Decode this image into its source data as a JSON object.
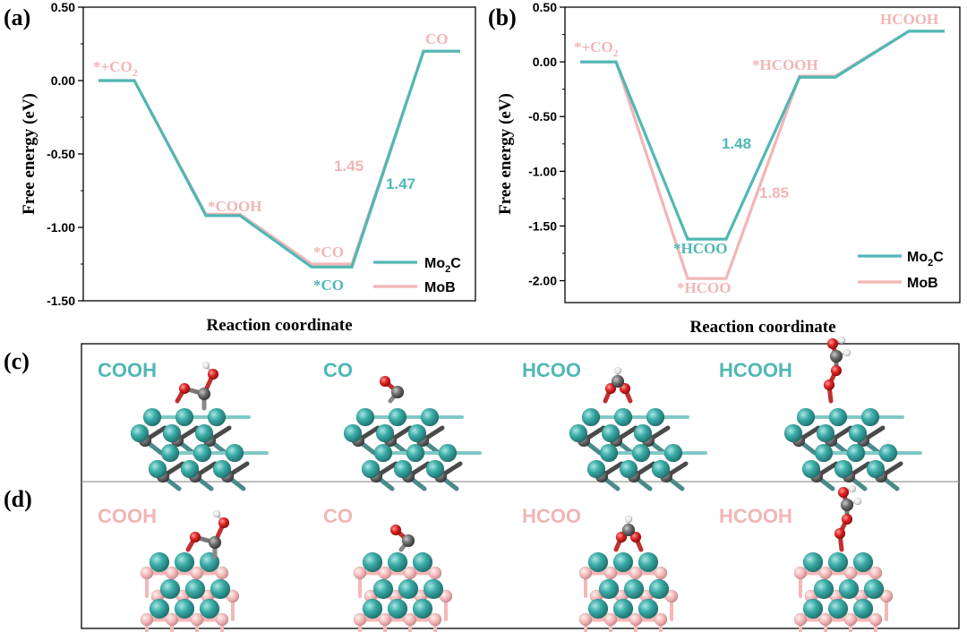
{
  "colors": {
    "mo2c": "#4fb8b4",
    "mob": "#f2b5b5",
    "atom_mo": "#3aaca8",
    "atom_c": "#6b6b6b",
    "atom_o": "#e02020",
    "atom_h": "#eeeeee",
    "atom_b": "#f4b8b8"
  },
  "panels": {
    "a": "(a)",
    "b": "(b)",
    "c": "(c)",
    "d": "(d)"
  },
  "chart_data": [
    {
      "type": "line",
      "panel": "(a)",
      "title": "",
      "xlabel": "Reaction coordinate",
      "ylabel": "Free energy (eV)",
      "ylim": [
        -1.5,
        0.5
      ],
      "yticks": [
        "0.50",
        "0.00",
        "-0.50",
        "-1.00",
        "-1.50"
      ],
      "ytick_values": [
        0.5,
        0.0,
        -0.5,
        -1.0,
        -1.5
      ],
      "states": [
        "*+CO2",
        "*COOH",
        "*CO",
        "CO"
      ],
      "series": [
        {
          "name": "Mo2C",
          "values": [
            0.0,
            -0.92,
            -1.27,
            0.2
          ]
        },
        {
          "name": "MoB",
          "values": [
            0.0,
            -0.91,
            -1.25,
            0.2
          ]
        }
      ],
      "labels": {
        "s0": "*+CO",
        "s0_sub": "2",
        "s1": "*COOH",
        "s2_mob": "*CO",
        "s2_mo2c": "*CO",
        "s3": "CO",
        "barrier_mob": "1.45",
        "barrier_mo2c": "1.47"
      },
      "legend": {
        "mo2c_base": "Mo",
        "mo2c_sub": "2",
        "mo2c_end": "C",
        "mob": "MoB",
        "position": "bottom-right"
      }
    },
    {
      "type": "line",
      "panel": "(b)",
      "title": "",
      "xlabel": "Reaction coordinate",
      "ylabel": "Free energy (eV)",
      "ylim": [
        -2.2,
        0.5
      ],
      "yticks": [
        "0.50",
        "0.00",
        "-0.50",
        "-1.00",
        "-1.50",
        "-2.00"
      ],
      "ytick_values": [
        0.5,
        0.0,
        -0.5,
        -1.0,
        -1.5,
        -2.0
      ],
      "states": [
        "*+CO2",
        "*HCOO",
        "*HCOOH",
        "HCOOH"
      ],
      "series": [
        {
          "name": "Mo2C",
          "values": [
            0.0,
            -1.62,
            -0.14,
            0.28
          ]
        },
        {
          "name": "MoB",
          "values": [
            0.0,
            -1.98,
            -0.13,
            0.28
          ]
        }
      ],
      "labels": {
        "s0": "*+CO",
        "s0_sub": "2",
        "s1_mo2c": "*HCOO",
        "s1_mob": "*HCOO",
        "s2": "*HCOOH",
        "s3": "HCOOH",
        "barrier_mo2c": "1.48",
        "barrier_mob": "1.85"
      },
      "legend": {
        "mo2c_base": "Mo",
        "mo2c_sub": "2",
        "mo2c_end": "C",
        "mob": "MoB",
        "position": "bottom-right"
      }
    }
  ],
  "structures": {
    "c": [
      "COOH",
      "CO",
      "HCOO",
      "HCOOH"
    ],
    "d": [
      "COOH",
      "CO",
      "HCOO",
      "HCOOH"
    ]
  }
}
